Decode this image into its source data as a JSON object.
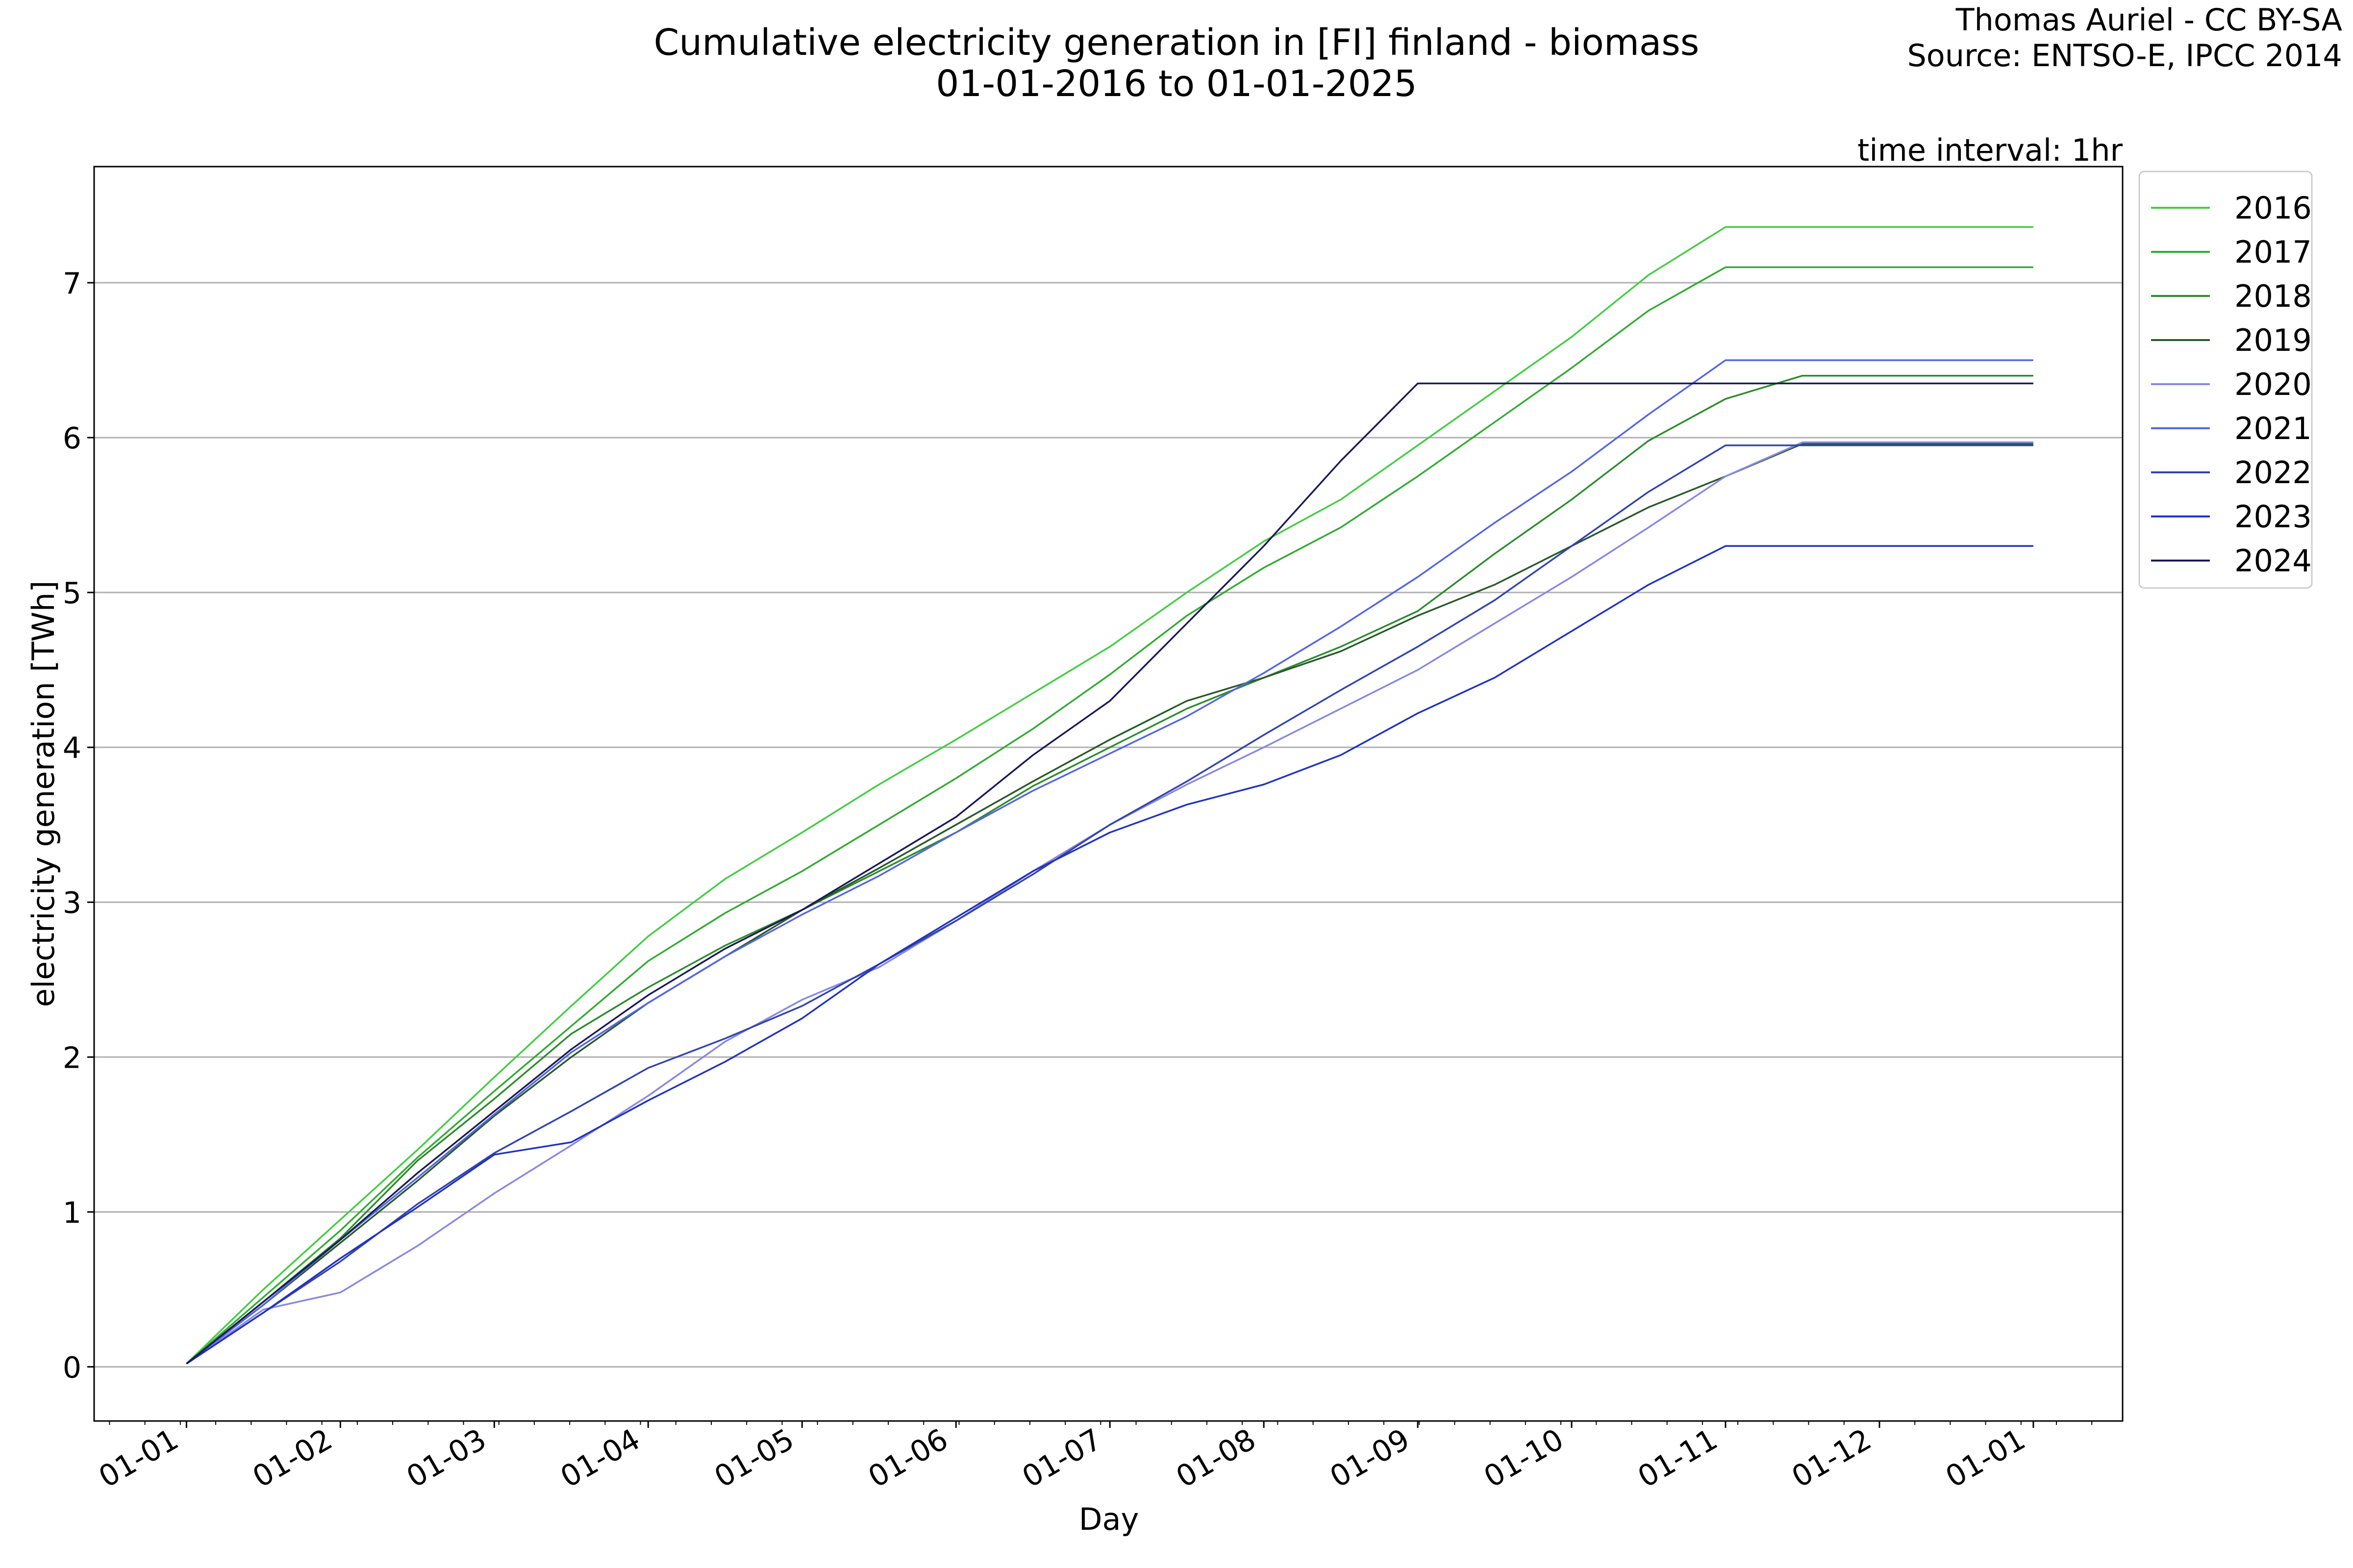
{
  "chart_data": {
    "type": "line",
    "title": "Cumulative electricity generation in [FI] finland - biomass",
    "subtitle": "01-01-2016 to 01-01-2025",
    "credit_line1": "Thomas Auriel - CC BY-SA",
    "credit_line2": "Source: ENTSO-E, IPCC 2014",
    "annotation": "time interval: 1hr",
    "xlabel": "Day",
    "ylabel": "electricity generation [TWh]",
    "ylim": [
      -0.35,
      7.75
    ],
    "yticks": [
      0,
      1,
      2,
      3,
      4,
      5,
      6,
      7
    ],
    "xlim": [
      -0.6,
      12.58
    ],
    "xticks": [
      0,
      1,
      2,
      3,
      4,
      5,
      6,
      7,
      8,
      9,
      10,
      11,
      12
    ],
    "xtick_labels": [
      "01-01",
      "01-02",
      "01-03",
      "01-04",
      "01-05",
      "01-06",
      "01-07",
      "01-08",
      "01-09",
      "01-10",
      "01-11",
      "01-12",
      "01-01"
    ],
    "grid": "horizontal",
    "legend_position": "outside-top-right",
    "x": [
      0,
      0.5,
      1,
      1.5,
      2,
      2.5,
      3,
      3.5,
      4,
      4.5,
      5,
      5.5,
      6,
      6.5,
      7,
      7.5,
      8,
      8.5,
      9,
      9.5,
      10,
      10.5,
      11,
      11.5,
      12
    ],
    "series": [
      {
        "name": "2016",
        "color": "#44cc44",
        "values": [
          0.02,
          0.5,
          0.95,
          1.4,
          1.87,
          2.33,
          2.78,
          3.15,
          3.45,
          3.76,
          4.05,
          4.35,
          4.65,
          5.0,
          5.33,
          5.6,
          5.95,
          6.3,
          6.65,
          7.05,
          7.36,
          7.36,
          7.36,
          7.36,
          7.36
        ]
      },
      {
        "name": "2017",
        "color": "#33aa33",
        "values": [
          0.02,
          0.45,
          0.88,
          1.35,
          1.78,
          2.2,
          2.62,
          2.93,
          3.2,
          3.5,
          3.8,
          4.12,
          4.47,
          4.85,
          5.16,
          5.42,
          5.75,
          6.1,
          6.45,
          6.82,
          7.1,
          7.1,
          7.1,
          7.1,
          7.1
        ]
      },
      {
        "name": "2018",
        "color": "#2e8b2e",
        "values": [
          0.02,
          0.42,
          0.83,
          1.33,
          1.73,
          2.15,
          2.45,
          2.72,
          2.95,
          3.2,
          3.45,
          3.75,
          4.0,
          4.25,
          4.45,
          4.65,
          4.88,
          5.25,
          5.6,
          5.98,
          6.25,
          6.4,
          6.4,
          6.4,
          6.4
        ]
      },
      {
        "name": "2019",
        "color": "#2a5a2a",
        "values": [
          0.02,
          0.4,
          0.8,
          1.2,
          1.62,
          2.0,
          2.35,
          2.65,
          2.95,
          3.22,
          3.5,
          3.78,
          4.05,
          4.3,
          4.45,
          4.62,
          4.85,
          5.05,
          5.3,
          5.55,
          5.75,
          5.96,
          5.96,
          5.96,
          5.96
        ]
      },
      {
        "name": "2020",
        "color": "#8888dd",
        "values": [
          0.02,
          0.37,
          0.48,
          0.78,
          1.12,
          1.43,
          1.75,
          2.1,
          2.37,
          2.58,
          2.88,
          3.2,
          3.5,
          3.76,
          4.0,
          4.25,
          4.5,
          4.8,
          5.1,
          5.42,
          5.75,
          5.97,
          5.97,
          5.97,
          5.97
        ]
      },
      {
        "name": "2021",
        "color": "#5566dd",
        "values": [
          0.02,
          0.4,
          0.82,
          1.22,
          1.63,
          2.03,
          2.35,
          2.65,
          2.92,
          3.17,
          3.45,
          3.72,
          3.96,
          4.2,
          4.48,
          4.78,
          5.1,
          5.45,
          5.78,
          6.15,
          6.5,
          6.5,
          6.5,
          6.5,
          6.5
        ]
      },
      {
        "name": "2022",
        "color": "#3344aa",
        "values": [
          0.02,
          0.35,
          0.68,
          1.05,
          1.38,
          1.65,
          1.93,
          2.12,
          2.33,
          2.6,
          2.88,
          3.18,
          3.5,
          3.78,
          4.08,
          4.37,
          4.65,
          4.95,
          5.3,
          5.65,
          5.95,
          5.95,
          5.95,
          5.95,
          5.95
        ]
      },
      {
        "name": "2023",
        "color": "#2233bb",
        "values": [
          0.02,
          0.35,
          0.7,
          1.03,
          1.37,
          1.45,
          1.72,
          1.97,
          2.25,
          2.6,
          2.9,
          3.2,
          3.45,
          3.63,
          3.76,
          3.95,
          4.22,
          4.45,
          4.75,
          5.05,
          5.3,
          5.3,
          5.3,
          5.3,
          5.3
        ]
      },
      {
        "name": "2024",
        "color": "#1a1a55",
        "values": [
          0.02,
          0.42,
          0.82,
          1.25,
          1.65,
          2.05,
          2.4,
          2.7,
          2.95,
          3.25,
          3.55,
          3.95,
          4.3,
          4.8,
          5.3,
          5.85,
          6.35,
          6.35,
          6.35,
          6.35,
          6.35,
          6.35,
          6.35,
          6.35,
          6.35
        ]
      }
    ]
  }
}
